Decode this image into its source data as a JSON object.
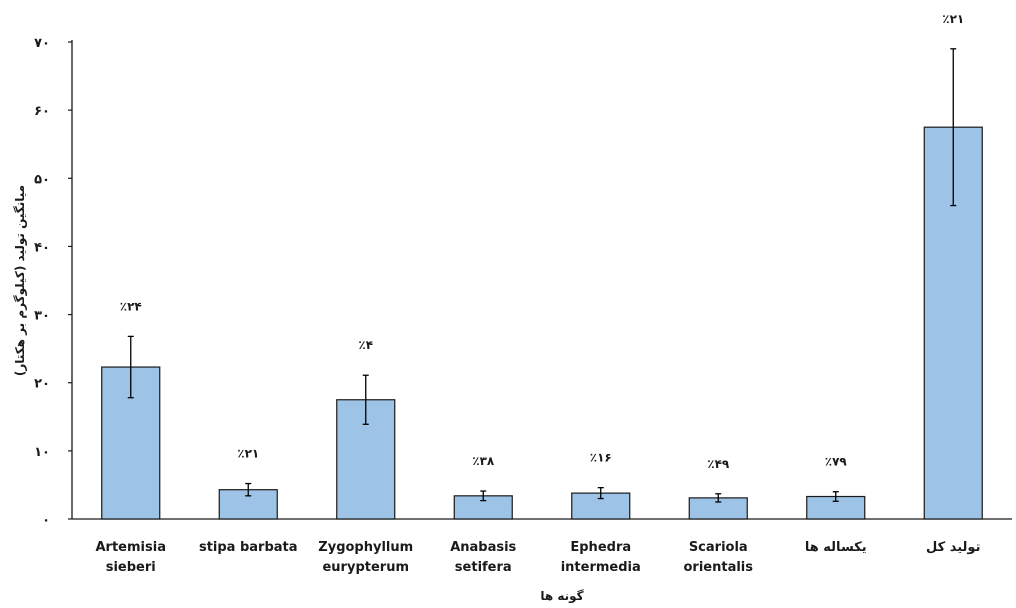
{
  "chart_data": {
    "type": "bar",
    "title": "",
    "xlabel": "گونه ها",
    "ylabel": "میانگین تولید (کیلوگرم بر هکتار)",
    "ylim": [
      0,
      70
    ],
    "yticks": [
      "۰",
      "۱۰",
      "۲۰",
      "۳۰",
      "۴۰",
      "۵۰",
      "۶۰",
      "۷۰"
    ],
    "categories": [
      [
        "Artemisia",
        "sieberi"
      ],
      [
        "stipa barbata"
      ],
      [
        "Zygophyllum",
        "eurypterum"
      ],
      [
        "Anabasis",
        "setifera"
      ],
      [
        "Ephedra",
        "intermedia"
      ],
      [
        "Scariola",
        "orientalis"
      ],
      [
        "یکساله ها"
      ],
      [
        "تولید کل"
      ]
    ],
    "values": [
      22.3,
      4.3,
      17.5,
      3.4,
      3.8,
      3.1,
      3.3,
      57.5
    ],
    "error": [
      4.5,
      0.9,
      3.6,
      0.7,
      0.8,
      0.6,
      0.7,
      11.5
    ],
    "bar_labels": [
      "٪۲۴",
      "٪۲۱",
      "٪۴",
      "٪۳۸",
      "٪۱۶",
      "٪۴۹",
      "٪۷۹",
      "٪۲۱"
    ],
    "colors": {
      "bar_fill": "#9dc3e6",
      "bar_stroke": "#1a1a1a",
      "axis": "#1a1a1a"
    },
    "grid": false,
    "legend": "none"
  }
}
